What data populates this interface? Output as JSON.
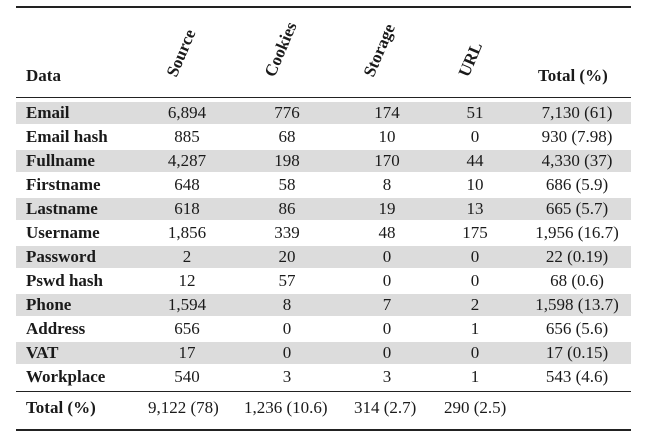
{
  "header": {
    "data": "Data",
    "source": "Source",
    "cookies": "Cookies",
    "storage": "Storage",
    "url": "URL",
    "total": "Total (%)"
  },
  "rows": [
    {
      "label": "Email",
      "source": "6,894",
      "cookies": "776",
      "storage": "174",
      "url": "51",
      "total": "7,130 (61)"
    },
    {
      "label": "Email hash",
      "source": "885",
      "cookies": "68",
      "storage": "10",
      "url": "0",
      "total": "930 (7.98)"
    },
    {
      "label": "Fullname",
      "source": "4,287",
      "cookies": "198",
      "storage": "170",
      "url": "44",
      "total": "4,330 (37)"
    },
    {
      "label": "Firstname",
      "source": "648",
      "cookies": "58",
      "storage": "8",
      "url": "10",
      "total": "686 (5.9)"
    },
    {
      "label": "Lastname",
      "source": "618",
      "cookies": "86",
      "storage": "19",
      "url": "13",
      "total": "665 (5.7)"
    },
    {
      "label": "Username",
      "source": "1,856",
      "cookies": "339",
      "storage": "48",
      "url": "175",
      "total": "1,956 (16.7)"
    },
    {
      "label": "Password",
      "source": "2",
      "cookies": "20",
      "storage": "0",
      "url": "0",
      "total": "22 (0.19)"
    },
    {
      "label": "Pswd hash",
      "source": "12",
      "cookies": "57",
      "storage": "0",
      "url": "0",
      "total": "68 (0.6)"
    },
    {
      "label": "Phone",
      "source": "1,594",
      "cookies": "8",
      "storage": "7",
      "url": "2",
      "total": "1,598 (13.7)"
    },
    {
      "label": "Address",
      "source": "656",
      "cookies": "0",
      "storage": "0",
      "url": "1",
      "total": "656 (5.6)"
    },
    {
      "label": "VAT",
      "source": "17",
      "cookies": "0",
      "storage": "0",
      "url": "0",
      "total": "17 (0.15)"
    },
    {
      "label": "Workplace",
      "source": "540",
      "cookies": "3",
      "storage": "3",
      "url": "1",
      "total": "543 (4.6)"
    }
  ],
  "footer": {
    "label": "Total (%)",
    "source": "9,122 (78)",
    "cookies": "1,236 (10.6)",
    "storage": "314 (2.7)",
    "url": "290 (2.5)"
  },
  "colors": {
    "stripe": "#dcdcdc",
    "rule": "#222222"
  }
}
